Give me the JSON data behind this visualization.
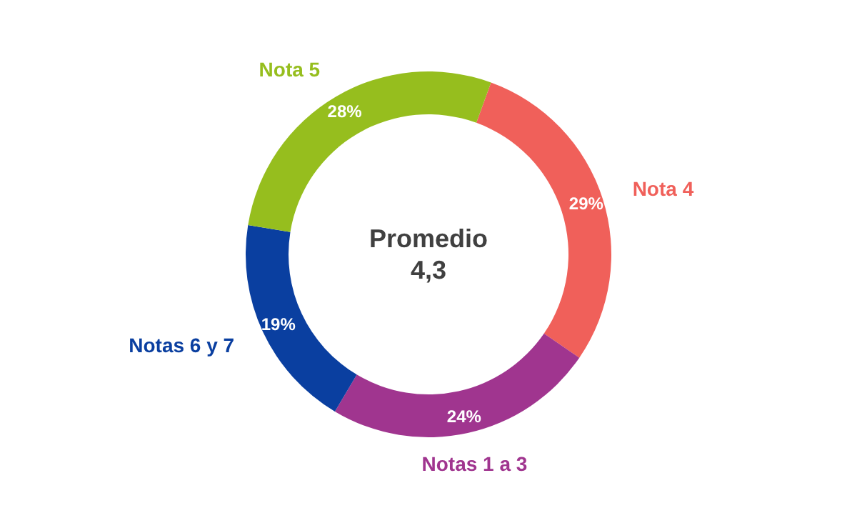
{
  "chart_data": {
    "type": "donut",
    "categories": [
      "Nota 4",
      "Notas 1 a 3",
      "Notas 6 y 7",
      "Nota 5"
    ],
    "values": [
      29,
      24,
      19,
      28
    ],
    "colors": [
      "#f0605a",
      "#a0358f",
      "#0a3fa0",
      "#96be1e"
    ],
    "value_labels": [
      "29%",
      "24%",
      "19%",
      "28%"
    ],
    "annotations": [
      "Promedio",
      "4,3"
    ],
    "legend": false
  }
}
